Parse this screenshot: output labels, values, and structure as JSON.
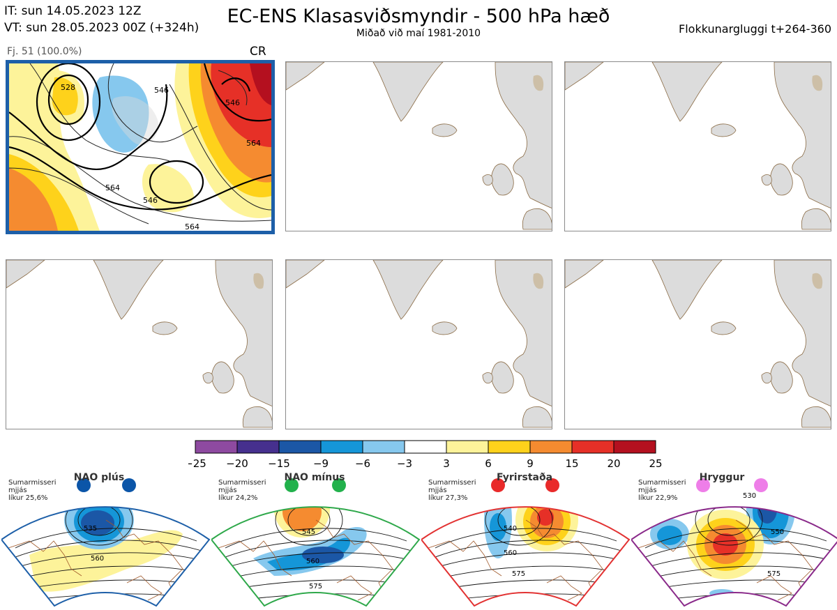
{
  "header": {
    "it_line": "IT: sun 14.05.2023 12Z",
    "vt_line": "VT: sun 28.05.2023 00Z  (+324h)",
    "title": "EC-ENS Klasasviðsmyndir - 500 hPa hæð",
    "subtitle": "Miðað við maí 1981-2010",
    "window_label": "Flokkunargluggi t+264-360"
  },
  "panel_main": {
    "member_label": "Fj. 51 (100.0%)",
    "class_label": "CR",
    "contour_labels": [
      "528",
      "546",
      "546",
      "564",
      "564",
      "546",
      "564"
    ]
  },
  "colorbar": {
    "ticks": [
      "−25",
      "−20",
      "−15",
      "−9",
      "−6",
      "−3",
      "3",
      "6",
      "9",
      "15",
      "20",
      "25"
    ],
    "colors": [
      "#8e4aa0",
      "#46308e",
      "#1b57a6",
      "#1596d8",
      "#86c8ee",
      "#ffffff",
      "#fdf39a",
      "#fed21b",
      "#f58b30",
      "#e63027",
      "#b4101f"
    ]
  },
  "regimes": [
    {
      "name": "NAO plús",
      "season": "Sumarmisseri",
      "note": "mjjás",
      "prob": "líkur 25,6%",
      "color": "#1d5fa8",
      "dot": "#0b55a8",
      "contours": [
        "535",
        "560"
      ]
    },
    {
      "name": "NAO mínus",
      "season": "Sumarmisseri",
      "note": "mjjás",
      "prob": "líkur 24,2%",
      "color": "#2ea84a",
      "dot": "#22b14c",
      "contours": [
        "545",
        "560",
        "575"
      ]
    },
    {
      "name": "Fyrirstaða",
      "season": "Sumarmisseri",
      "note": "mjjás",
      "prob": "líkur 27,3%",
      "color": "#e23232",
      "dot": "#e92a2a",
      "contours": [
        "540",
        "560",
        "575"
      ]
    },
    {
      "name": "Hryggur",
      "season": "Sumarmisseri",
      "note": "mjjás",
      "prob": "líkur 22,9%",
      "color": "#8a2a8a",
      "dot": "#ee7ee8",
      "contours": [
        "530",
        "550",
        "575"
      ]
    }
  ]
}
